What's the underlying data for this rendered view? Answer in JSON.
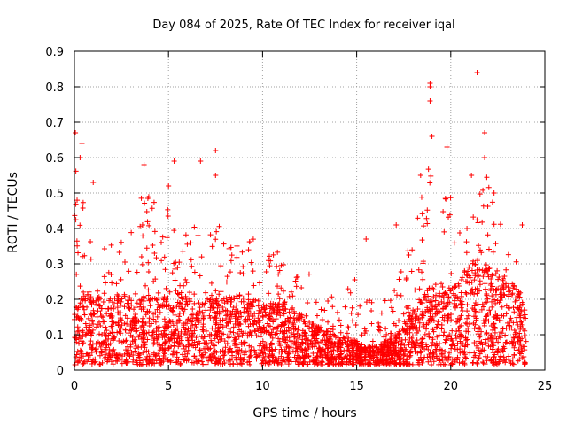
{
  "chart_data": {
    "type": "scatter",
    "title": "Day 084 of 2025, Rate Of TEC Index for receiver iqal",
    "xlabel": "GPS time / hours",
    "ylabel": "ROTI / TECUs",
    "xlim": [
      0,
      25
    ],
    "ylim": [
      0,
      0.9
    ],
    "xticks": [
      "0",
      "5",
      "10",
      "15",
      "20",
      "25"
    ],
    "yticks": [
      "0",
      "0.1",
      "0.2",
      "0.3",
      "0.4",
      "0.5",
      "0.6",
      "0.7",
      "0.8",
      "0.9"
    ],
    "grid": true,
    "marker": "+",
    "color": "#ff0000",
    "envelope_hours": [
      0,
      0.5,
      1,
      1.5,
      2,
      2.5,
      3,
      3.5,
      4,
      4.5,
      5,
      5.5,
      6,
      6.5,
      7,
      7.5,
      8,
      8.5,
      9,
      9.5,
      10,
      10.5,
      11,
      11.5,
      12,
      12.5,
      13,
      13.5,
      14,
      14.5,
      15,
      15.5,
      16,
      16.5,
      17,
      17.5,
      18,
      18.5,
      19,
      19.5,
      20,
      20.5,
      21,
      21.5,
      22,
      22.5,
      23,
      23.5,
      24
    ],
    "envelope_typical": [
      0.12,
      0.16,
      0.15,
      0.14,
      0.14,
      0.15,
      0.14,
      0.15,
      0.16,
      0.15,
      0.15,
      0.15,
      0.14,
      0.13,
      0.14,
      0.14,
      0.14,
      0.15,
      0.14,
      0.14,
      0.13,
      0.13,
      0.13,
      0.12,
      0.11,
      0.09,
      0.08,
      0.07,
      0.06,
      0.06,
      0.05,
      0.04,
      0.04,
      0.05,
      0.06,
      0.08,
      0.12,
      0.15,
      0.17,
      0.17,
      0.16,
      0.18,
      0.21,
      0.23,
      0.22,
      0.2,
      0.18,
      0.16,
      0.14
    ],
    "envelope_peak": [
      0.62,
      0.5,
      0.42,
      0.36,
      0.37,
      0.4,
      0.45,
      0.48,
      0.55,
      0.45,
      0.5,
      0.46,
      0.42,
      0.5,
      0.4,
      0.45,
      0.4,
      0.38,
      0.38,
      0.38,
      0.4,
      0.35,
      0.33,
      0.3,
      0.26,
      0.28,
      0.22,
      0.2,
      0.22,
      0.25,
      0.32,
      0.26,
      0.22,
      0.2,
      0.24,
      0.3,
      0.42,
      0.5,
      0.62,
      0.45,
      0.55,
      0.42,
      0.48,
      0.52,
      0.55,
      0.45,
      0.38,
      0.32,
      0.35
    ],
    "notable_points": [
      {
        "x": 0.05,
        "y": 0.67
      },
      {
        "x": 0.4,
        "y": 0.64
      },
      {
        "x": 0.3,
        "y": 0.6
      },
      {
        "x": 1.0,
        "y": 0.53
      },
      {
        "x": 3.7,
        "y": 0.58
      },
      {
        "x": 5.0,
        "y": 0.52
      },
      {
        "x": 5.3,
        "y": 0.59
      },
      {
        "x": 6.7,
        "y": 0.59
      },
      {
        "x": 7.5,
        "y": 0.62
      },
      {
        "x": 7.5,
        "y": 0.55
      },
      {
        "x": 15.5,
        "y": 0.37
      },
      {
        "x": 17.1,
        "y": 0.41
      },
      {
        "x": 18.4,
        "y": 0.55
      },
      {
        "x": 18.9,
        "y": 0.81
      },
      {
        "x": 18.9,
        "y": 0.8
      },
      {
        "x": 18.9,
        "y": 0.76
      },
      {
        "x": 19.0,
        "y": 0.66
      },
      {
        "x": 19.8,
        "y": 0.63
      },
      {
        "x": 21.1,
        "y": 0.55
      },
      {
        "x": 21.4,
        "y": 0.84
      },
      {
        "x": 21.8,
        "y": 0.6
      },
      {
        "x": 21.8,
        "y": 0.67
      },
      {
        "x": 22.3,
        "y": 0.5
      },
      {
        "x": 23.8,
        "y": 0.41
      }
    ]
  }
}
